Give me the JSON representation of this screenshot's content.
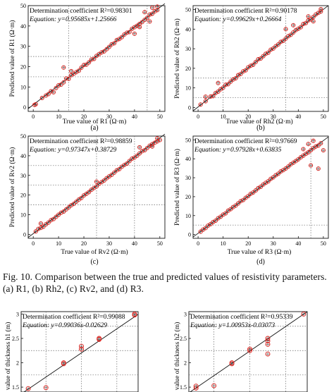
{
  "caption": {
    "figure_label": "Fig. 10.",
    "text": "Comparison between the true and predicted values of resistivity parameters. (a) R1, (b) Rh2, (c) Rv2, and (d) R3."
  },
  "colors": {
    "marker": "#e0201b",
    "fit_line": "#111111",
    "crosshair": "#2a2a2a",
    "ref_line": "#666666"
  },
  "chart_data": [
    {
      "panel_label": "(a)",
      "type": "scatter",
      "annotation_line1": "Determination coefficient R²=0.98301",
      "annotation_line2": "Equation: y=0.95685x+1.25666",
      "xlabel": "True value of R1 (Ω·m)",
      "ylabel": "Predicted value of R1 (Ω·m)",
      "xlim": [
        -2,
        52
      ],
      "ylim": [
        -2,
        50
      ],
      "xticks": [
        0,
        10,
        20,
        30,
        40,
        50
      ],
      "yticks": [
        0,
        10,
        20,
        30,
        40,
        50
      ],
      "ref_x": [
        14,
        45
      ],
      "ref_y": [
        15,
        25
      ],
      "fit": {
        "slope": 0.95685,
        "intercept": 1.25666
      },
      "points": [
        [
          0.5,
          1.2
        ],
        [
          1,
          1.5
        ],
        [
          3.5,
          4.6
        ],
        [
          5,
          5.8
        ],
        [
          6,
          6.5
        ],
        [
          7,
          7.9
        ],
        [
          8,
          7.4
        ],
        [
          9,
          9.5
        ],
        [
          10,
          10.8
        ],
        [
          11,
          11.2
        ],
        [
          12,
          12.3
        ],
        [
          13,
          14.2
        ],
        [
          14,
          14.0
        ],
        [
          15,
          15.8
        ],
        [
          16,
          16.5
        ],
        [
          17,
          17.3
        ],
        [
          18,
          18.0
        ],
        [
          19,
          19.5
        ],
        [
          20,
          20.8
        ],
        [
          21,
          21.0
        ],
        [
          22,
          22.1
        ],
        [
          23,
          23.5
        ],
        [
          24,
          23.8
        ],
        [
          25,
          25.3
        ],
        [
          26,
          26.2
        ],
        [
          27,
          27.0
        ],
        [
          28,
          27.5
        ],
        [
          29,
          28.6
        ],
        [
          30,
          29.7
        ],
        [
          31,
          31.0
        ],
        [
          32,
          31.5
        ],
        [
          33,
          33.1
        ],
        [
          34,
          33.6
        ],
        [
          35,
          34.5
        ],
        [
          36,
          35.8
        ],
        [
          37,
          36.7
        ],
        [
          38,
          37.0
        ],
        [
          39,
          38.6
        ],
        [
          40,
          39.4
        ],
        [
          41,
          40.1
        ],
        [
          42,
          41.0
        ],
        [
          43,
          41.9
        ],
        [
          44,
          43.0
        ],
        [
          45,
          44.0
        ],
        [
          46,
          45.6
        ],
        [
          47,
          46.0
        ],
        [
          48,
          47.2
        ],
        [
          49,
          47.8
        ],
        [
          12,
          19.6
        ],
        [
          15,
          17.8
        ],
        [
          40,
          36.2
        ],
        [
          44,
          46.8
        ],
        [
          46,
          42.2
        ],
        [
          47,
          49.0
        ],
        [
          49,
          49.5
        ],
        [
          42,
          39.5
        ]
      ]
    },
    {
      "panel_label": "(b)",
      "type": "scatter",
      "annotation_line1": "Determination coefficient R²=0.90178",
      "annotation_line2": "Equation: y=0.99629x+0.26664",
      "xlabel": "True value of Rh2 (Ω·m)",
      "ylabel": "Predicted value of Rh2 (Ω·m)",
      "xlim": [
        -2,
        52
      ],
      "ylim": [
        -2,
        52
      ],
      "xticks": [
        0,
        10,
        20,
        30,
        40,
        50
      ],
      "yticks": [
        0,
        10,
        20,
        30,
        40,
        50
      ],
      "ref_x": [
        10,
        35
      ],
      "ref_y": [
        5,
        15
      ],
      "fit": {
        "slope": 0.99629,
        "intercept": 0.26664
      },
      "points": [
        [
          1,
          1.5
        ],
        [
          3,
          3.2
        ],
        [
          5,
          5.6
        ],
        [
          6,
          5.8
        ],
        [
          7,
          7.4
        ],
        [
          8,
          8.1
        ],
        [
          9,
          9.3
        ],
        [
          10,
          10.1
        ],
        [
          11,
          11.6
        ],
        [
          12,
          11.9
        ],
        [
          13,
          13.2
        ],
        [
          14,
          14.3
        ],
        [
          15,
          14.9
        ],
        [
          16,
          16.5
        ],
        [
          17,
          17.1
        ],
        [
          18,
          18.4
        ],
        [
          19,
          19.0
        ],
        [
          20,
          20.5
        ],
        [
          21,
          21.3
        ],
        [
          22,
          21.8
        ],
        [
          23,
          23.2
        ],
        [
          24,
          24.6
        ],
        [
          25,
          25.0
        ],
        [
          26,
          26.2
        ],
        [
          27,
          27.4
        ],
        [
          28,
          28.0
        ],
        [
          29,
          29.5
        ],
        [
          30,
          30.1
        ],
        [
          31,
          31.3
        ],
        [
          32,
          32.2
        ],
        [
          33,
          33.5
        ],
        [
          34,
          34.0
        ],
        [
          35,
          35.2
        ],
        [
          36,
          36.4
        ],
        [
          37,
          37.1
        ],
        [
          38,
          38.3
        ],
        [
          39,
          39.5
        ],
        [
          40,
          40.2
        ],
        [
          41,
          41.0
        ],
        [
          42,
          42.6
        ],
        [
          43,
          43.1
        ],
        [
          44,
          44.5
        ],
        [
          45,
          45.0
        ],
        [
          46,
          46.2
        ],
        [
          47,
          47.5
        ],
        [
          48,
          48.3
        ],
        [
          49,
          49.0
        ],
        [
          3,
          5.5
        ],
        [
          8,
          12.5
        ],
        [
          35,
          40.0
        ],
        [
          38,
          42.0
        ],
        [
          44,
          46.5
        ],
        [
          46,
          44.0
        ],
        [
          49,
          50.2
        ]
      ]
    },
    {
      "panel_label": "(c)",
      "type": "scatter",
      "annotation_line1": "Determination coefficient R²=0.98859",
      "annotation_line2": "Equation: y=0.97347x+0.38729",
      "xlabel": "True value of Rv2 (Ω·m)",
      "ylabel": "Predicted value of Rv2 (Ω·m)",
      "xlim": [
        -2,
        52
      ],
      "ylim": [
        -2,
        50
      ],
      "xticks": [
        0,
        10,
        20,
        30,
        40,
        50
      ],
      "yticks": [
        0,
        10,
        20,
        30,
        40,
        50
      ],
      "ref_x": [
        25,
        40
      ],
      "ref_y": [
        15,
        25,
        35
      ],
      "fit": {
        "slope": 0.97347,
        "intercept": 0.38729
      },
      "points": [
        [
          1,
          1.5
        ],
        [
          2,
          2.8
        ],
        [
          3,
          3.3
        ],
        [
          4,
          3.9
        ],
        [
          5,
          5.1
        ],
        [
          6,
          6.0
        ],
        [
          7,
          7.2
        ],
        [
          8,
          7.8
        ],
        [
          9,
          8.9
        ],
        [
          10,
          10.0
        ],
        [
          11,
          11.0
        ],
        [
          12,
          11.6
        ],
        [
          13,
          12.7
        ],
        [
          14,
          13.7
        ],
        [
          15,
          14.8
        ],
        [
          16,
          15.5
        ],
        [
          17,
          16.6
        ],
        [
          18,
          17.7
        ],
        [
          19,
          18.5
        ],
        [
          20,
          19.8
        ],
        [
          21,
          20.6
        ],
        [
          22,
          21.5
        ],
        [
          23,
          22.7
        ],
        [
          24,
          23.6
        ],
        [
          25,
          24.4
        ],
        [
          26,
          25.7
        ],
        [
          27,
          26.6
        ],
        [
          28,
          27.4
        ],
        [
          29,
          28.6
        ],
        [
          30,
          29.5
        ],
        [
          31,
          30.3
        ],
        [
          32,
          31.4
        ],
        [
          33,
          32.6
        ],
        [
          34,
          33.2
        ],
        [
          35,
          34.4
        ],
        [
          36,
          35.3
        ],
        [
          37,
          36.0
        ],
        [
          38,
          37.3
        ],
        [
          39,
          38.5
        ],
        [
          40,
          39.1
        ],
        [
          41,
          40.0
        ],
        [
          42,
          41.2
        ],
        [
          43,
          42.3
        ],
        [
          44,
          42.8
        ],
        [
          45,
          43.9
        ],
        [
          46,
          45.1
        ],
        [
          47,
          45.9
        ],
        [
          48,
          46.6
        ],
        [
          49,
          47.3
        ],
        [
          50,
          48.0
        ],
        [
          3,
          5.5
        ],
        [
          25,
          26.8
        ],
        [
          42,
          44.3
        ],
        [
          47,
          44.7
        ],
        [
          49,
          48.8
        ]
      ]
    },
    {
      "panel_label": "(d)",
      "type": "scatter",
      "annotation_line1": "Determination coefficient R²=0.97669",
      "annotation_line2": "Equation: y=0.97928x+0.63835",
      "xlabel": "True value of R3 (Ω·m)",
      "ylabel": "Predicted value of R3 (Ω·m)",
      "xlim": [
        -2,
        52
      ],
      "ylim": [
        -2,
        52
      ],
      "xticks": [
        0,
        10,
        20,
        30,
        40,
        50
      ],
      "yticks": [
        0,
        10,
        20,
        30,
        40,
        50
      ],
      "ref_x": [
        45
      ],
      "ref_y": [
        5
      ],
      "fit": {
        "slope": 0.97928,
        "intercept": 0.63835
      },
      "points": [
        [
          1,
          1.5
        ],
        [
          2,
          2.6
        ],
        [
          3,
          3.4
        ],
        [
          4,
          4.7
        ],
        [
          5,
          5.5
        ],
        [
          6,
          6.6
        ],
        [
          7,
          7.3
        ],
        [
          8,
          8.6
        ],
        [
          9,
          9.4
        ],
        [
          10,
          10.5
        ],
        [
          11,
          11.2
        ],
        [
          12,
          12.6
        ],
        [
          13,
          13.4
        ],
        [
          14,
          14.5
        ],
        [
          15,
          15.3
        ],
        [
          16,
          16.4
        ],
        [
          17,
          17.6
        ],
        [
          18,
          18.2
        ],
        [
          19,
          19.4
        ],
        [
          20,
          20.3
        ],
        [
          21,
          21.5
        ],
        [
          22,
          22.2
        ],
        [
          23,
          23.3
        ],
        [
          24,
          24.5
        ],
        [
          25,
          25.2
        ],
        [
          26,
          26.4
        ],
        [
          27,
          27.3
        ],
        [
          28,
          28.1
        ],
        [
          29,
          29.4
        ],
        [
          30,
          30.2
        ],
        [
          31,
          31.3
        ],
        [
          32,
          32.1
        ],
        [
          33,
          33.3
        ],
        [
          34,
          34.0
        ],
        [
          35,
          34.9
        ],
        [
          36,
          35.9
        ],
        [
          37,
          37.1
        ],
        [
          38,
          37.9
        ],
        [
          39,
          38.8
        ],
        [
          40,
          39.7
        ],
        [
          41,
          40.8
        ],
        [
          42,
          41.7
        ],
        [
          43,
          42.6
        ],
        [
          44,
          43.4
        ],
        [
          45,
          44.5
        ],
        [
          46,
          45.6
        ],
        [
          47,
          46.5
        ],
        [
          48,
          47.0
        ],
        [
          49,
          48.2
        ],
        [
          45,
          36.5
        ],
        [
          48,
          34.8
        ],
        [
          46,
          49.5
        ],
        [
          44,
          47.8
        ],
        [
          50,
          44.5
        ],
        [
          42,
          45.1
        ]
      ]
    },
    {
      "panel_label": "",
      "type": "scatter",
      "annotation_line1": "Determination coefficient R²=0.99088",
      "annotation_line2": "Equation: y=0.99036x-0.02629",
      "xlabel": "",
      "ylabel": "value of thickness h1 (m)",
      "xlim": [
        1.4,
        3.05
      ],
      "ylim": [
        1.4,
        3.05
      ],
      "xticks": [],
      "yticks": [
        1.5,
        2.0,
        2.5,
        3.0
      ],
      "ref_x": [
        1.75,
        2.25,
        2.75
      ],
      "ref_y": [
        1.75,
        2.25,
        2.75
      ],
      "fit": {
        "slope": 0.99036,
        "intercept": -0.02629
      },
      "points": [
        [
          1.5,
          1.47
        ],
        [
          1.75,
          1.49
        ],
        [
          2.0,
          2.0
        ],
        [
          2.0,
          1.98
        ],
        [
          2.25,
          2.34
        ],
        [
          2.25,
          2.28
        ],
        [
          2.5,
          2.5
        ],
        [
          2.5,
          2.48
        ],
        [
          3.0,
          3.0
        ],
        [
          3.0,
          2.98
        ]
      ]
    },
    {
      "panel_label": "",
      "type": "scatter",
      "annotation_line1": "Determination coefficient R²=0.95339",
      "annotation_line2": "Equation: y=1.00953x-0.03073",
      "xlabel": "",
      "ylabel": "value of thickness h2 (m)",
      "xlim": [
        1.4,
        3.05
      ],
      "ylim": [
        1.4,
        3.05
      ],
      "xticks": [],
      "yticks": [
        1.5,
        2.0,
        2.5,
        3.0
      ],
      "ref_x": [
        1.75,
        2.25,
        2.75
      ],
      "ref_y": [
        1.75,
        2.25,
        2.75
      ],
      "fit": {
        "slope": 1.00953,
        "intercept": -0.03073
      },
      "points": [
        [
          1.5,
          1.48
        ],
        [
          1.5,
          1.52
        ],
        [
          1.75,
          1.53
        ],
        [
          2.0,
          2.0
        ],
        [
          2.0,
          1.98
        ],
        [
          2.25,
          2.25
        ],
        [
          2.25,
          2.28
        ],
        [
          2.5,
          2.5
        ],
        [
          2.5,
          2.45
        ],
        [
          2.5,
          2.38
        ],
        [
          2.5,
          2.18
        ],
        [
          3.0,
          3.0
        ]
      ]
    }
  ]
}
